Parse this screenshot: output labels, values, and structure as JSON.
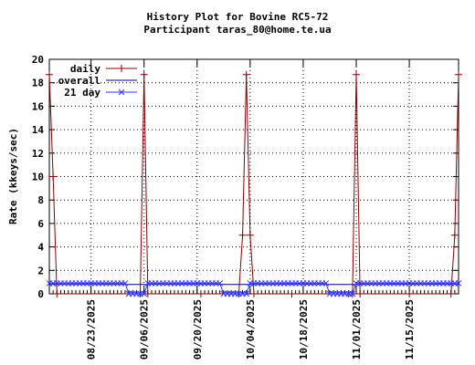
{
  "chart_data": {
    "type": "line",
    "title": "History Plot for Bovine RC5-72",
    "subtitle": "Participant taras_80@home.te.ua",
    "xlabel": "",
    "ylabel": "Rate (kkeys/sec)",
    "ylim": [
      0,
      20
    ],
    "yticks": [
      "0",
      "2",
      "4",
      "6",
      "8",
      "10",
      "12",
      "14",
      "16",
      "18",
      "20"
    ],
    "xlim": [
      "2025-08-12",
      "2025-11-28"
    ],
    "xticks": [
      "08/23/2025",
      "09/06/2025",
      "09/20/2025",
      "10/04/2025",
      "10/18/2025",
      "11/01/2025",
      "11/15/2025"
    ],
    "grid": true,
    "legend_position": "top-left",
    "series": [
      {
        "name": "daily",
        "color": "#8b0000",
        "marker": "plus",
        "points": [
          [
            "2025-08-12",
            18.7
          ],
          [
            "2025-08-13",
            10.0
          ],
          [
            "2025-08-14",
            0.0
          ],
          [
            "2025-09-05",
            0.0
          ],
          [
            "2025-09-06",
            18.7
          ],
          [
            "2025-09-07",
            0.0
          ],
          [
            "2025-09-21",
            0.0
          ],
          [
            "2025-10-01",
            0.0
          ],
          [
            "2025-10-02",
            5.0
          ],
          [
            "2025-10-03",
            18.7
          ],
          [
            "2025-10-04",
            5.0
          ],
          [
            "2025-10-05",
            0.0
          ],
          [
            "2025-10-15",
            0.0
          ],
          [
            "2025-10-30",
            0.0
          ],
          [
            "2025-10-31",
            0.0
          ],
          [
            "2025-11-01",
            18.7
          ],
          [
            "2025-11-02",
            0.0
          ],
          [
            "2025-11-15",
            0.0
          ],
          [
            "2025-11-26",
            0.0
          ],
          [
            "2025-11-27",
            5.0
          ],
          [
            "2025-11-28",
            18.7
          ]
        ]
      },
      {
        "name": "overall",
        "color": "#000080",
        "marker": "none",
        "points": [
          [
            "2025-08-12",
            0.8
          ],
          [
            "2025-11-28",
            0.8
          ]
        ]
      },
      {
        "name": "21 day",
        "color": "#3333ff",
        "marker": "x",
        "points": [
          [
            "2025-08-12",
            0.9
          ],
          [
            "2025-09-01",
            0.9
          ],
          [
            "2025-09-02",
            0.0
          ],
          [
            "2025-09-06",
            0.0
          ],
          [
            "2025-09-07",
            0.9
          ],
          [
            "2025-09-26",
            0.9
          ],
          [
            "2025-09-27",
            0.0
          ],
          [
            "2025-10-03",
            0.0
          ],
          [
            "2025-10-04",
            0.9
          ],
          [
            "2025-10-24",
            0.9
          ],
          [
            "2025-10-25",
            0.0
          ],
          [
            "2025-10-31",
            0.0
          ],
          [
            "2025-11-01",
            0.9
          ],
          [
            "2025-11-28",
            0.9
          ]
        ]
      }
    ]
  }
}
